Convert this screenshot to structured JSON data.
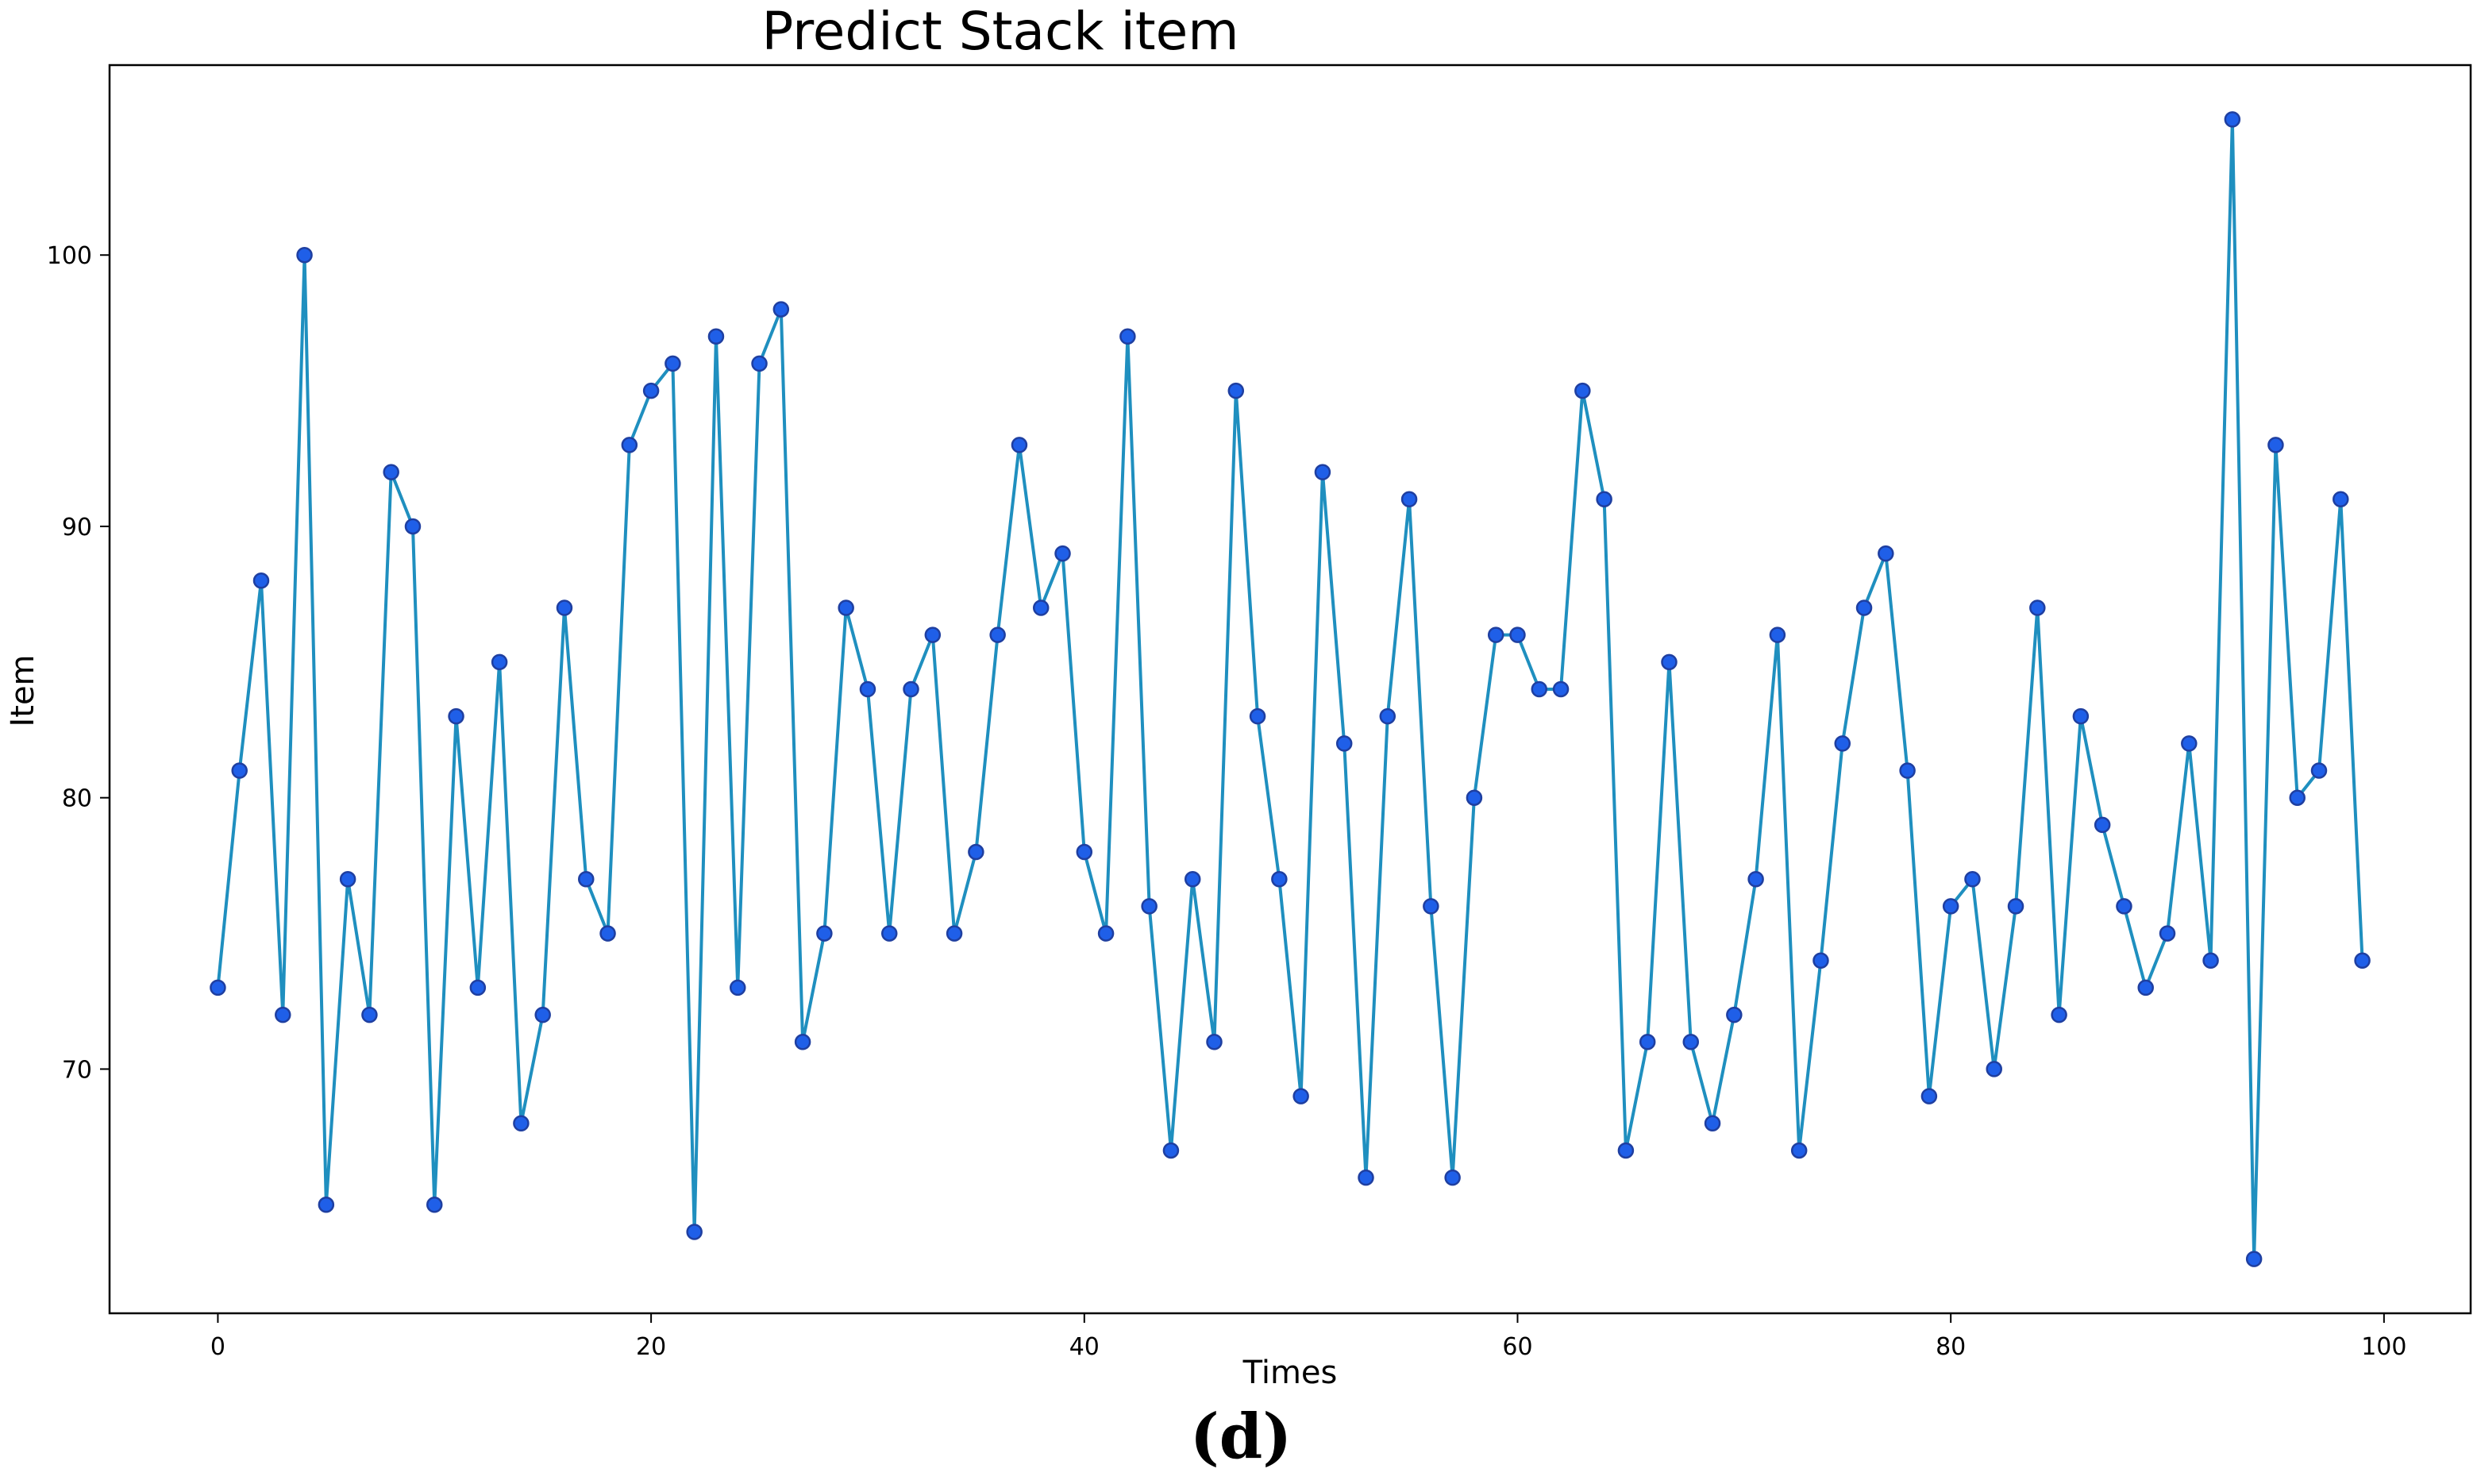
{
  "chart_data": {
    "type": "line",
    "title": "Predict Stack item",
    "xlabel": "Times",
    "ylabel": "Item",
    "caption": "(d)",
    "xlim": [
      -5,
      104
    ],
    "ylim": [
      61,
      107
    ],
    "xticks": [
      0,
      20,
      40,
      60,
      80,
      100
    ],
    "yticks": [
      70,
      80,
      90,
      100
    ],
    "grid": false,
    "line_color": "#1f8fbf",
    "marker_color": "#1f5fe8",
    "marker_edge_color": "#1f3fa0",
    "x": [
      0,
      1,
      2,
      3,
      4,
      5,
      6,
      7,
      8,
      9,
      10,
      11,
      12,
      13,
      14,
      15,
      16,
      17,
      18,
      19,
      20,
      21,
      22,
      23,
      24,
      25,
      26,
      27,
      28,
      29,
      30,
      31,
      32,
      33,
      34,
      35,
      36,
      37,
      38,
      39,
      40,
      41,
      42,
      43,
      44,
      45,
      46,
      47,
      48,
      49,
      50,
      51,
      52,
      53,
      54,
      55,
      56,
      57,
      58,
      59,
      60,
      61,
      62,
      63,
      64,
      65,
      66,
      67,
      68,
      69,
      70,
      71,
      72,
      73,
      74,
      75,
      76,
      77,
      78,
      79,
      80,
      81,
      82,
      83,
      84,
      85,
      86,
      87,
      88,
      89,
      90,
      91,
      92,
      93,
      94,
      95,
      96,
      97,
      98,
      99
    ],
    "series": [
      {
        "values": [
          73,
          81,
          88,
          72,
          100,
          65,
          77,
          72,
          92,
          90,
          65,
          83,
          73,
          85,
          68,
          72,
          87,
          77,
          75,
          93,
          95,
          96,
          64,
          97,
          73,
          96,
          98,
          71,
          75,
          87,
          84,
          75,
          84,
          86,
          75,
          78,
          86,
          93,
          87,
          89,
          78,
          75,
          97,
          76,
          67,
          77,
          71,
          95,
          83,
          77,
          69,
          92,
          82,
          66,
          83,
          91,
          76,
          66,
          80,
          86,
          86,
          84,
          84,
          95,
          91,
          67,
          71,
          85,
          71,
          68,
          72,
          77,
          86,
          67,
          74,
          82,
          87,
          89,
          81,
          69,
          76,
          77,
          70,
          76,
          87,
          72,
          83,
          79,
          76,
          73,
          75,
          82,
          74,
          105,
          63,
          93,
          80,
          81,
          91,
          74
        ]
      }
    ]
  }
}
